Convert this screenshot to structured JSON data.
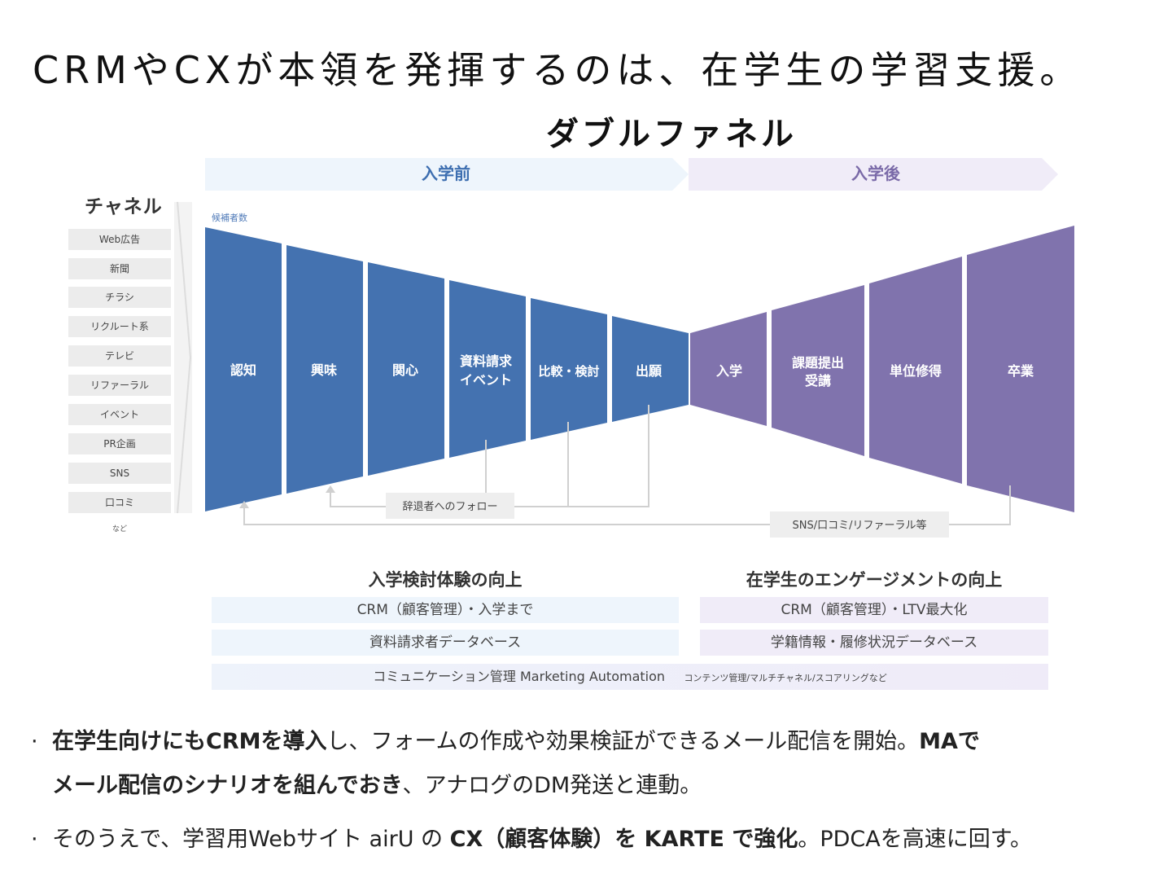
{
  "header": {
    "title": "CRMやCXが本領を発揮するのは、在学生の学習支援。",
    "subtitle": "ダブルファネル"
  },
  "phases": {
    "before": "入学前",
    "after": "入学後"
  },
  "channels": {
    "title": "チャネル",
    "items": [
      "Web広告",
      "新聞",
      "チラシ",
      "リクルート系",
      "テレビ",
      "リファーラル",
      "イベント",
      "PR企画",
      "SNS",
      "口コミ"
    ],
    "etc": "など"
  },
  "funnel": {
    "candidates_label": "候補者数",
    "stages_before": [
      {
        "line1": "認知"
      },
      {
        "line1": "興味"
      },
      {
        "line1": "関心"
      },
      {
        "line1": "資料請求",
        "line2": "イベント"
      },
      {
        "line1": "比較・検討"
      },
      {
        "line1": "出願"
      }
    ],
    "stages_after": [
      {
        "line1": "入学"
      },
      {
        "line1": "課題提出",
        "line2": "受講"
      },
      {
        "line1": "単位修得"
      },
      {
        "line1": "卒業"
      }
    ],
    "follow_label": "辞退者へのフォロー",
    "referral_label": "SNS/口コミ/リファーラル等"
  },
  "sections": {
    "left_title": "入学検討体験の向上",
    "right_title": "在学生のエンゲージメントの向上",
    "left_boxes": [
      "CRM（顧客管理）・入学まで",
      "資料請求者データベース"
    ],
    "right_boxes": [
      "CRM（顧客管理）・LTV最大化",
      "学籍情報・履修状況データベース"
    ],
    "bottom_main": "コミュニケーション管理 Marketing Automation",
    "bottom_note": "コンテンツ管理/マルチチャネル/スコアリングなど"
  },
  "bullets": {
    "b1_bold1": "在学生向けにもCRMを導入",
    "b1_text1": "し、フォームの作成や効果検証ができるメール配信を開始。",
    "b1_bold2": "MAで",
    "b1_bold3": "メール配信のシナリオを組んでおき",
    "b1_text2": "、アナログのDM発送と連動。",
    "b2_text1": "そのうえで、学習用Webサイト airU の ",
    "b2_bold1": "CX（顧客体験）を KARTE で強化",
    "b2_text2": "。PDCAを高速に回す。"
  },
  "colors": {
    "blue_funnel": "#4472b0",
    "purple_funnel": "#8073ad",
    "arrow_blue": "#eef5fc",
    "arrow_purple": "#f0ecf8"
  }
}
